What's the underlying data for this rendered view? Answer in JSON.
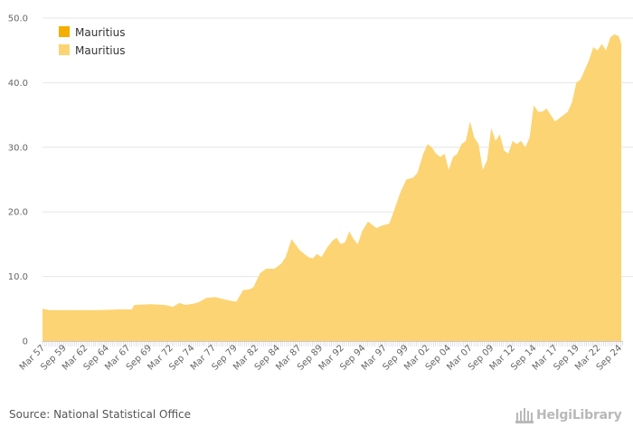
{
  "colors": {
    "series_1": "#f4ae00",
    "series_2": "#fcd473",
    "grid": "#e6e6e6",
    "axis_text": "#666666",
    "logo": "#b9b9b9"
  },
  "chart_data": {
    "type": "area",
    "title": "",
    "xlabel": "",
    "ylabel": "",
    "ylim": [
      0,
      50
    ],
    "y_ticks": [
      "0",
      "10.0",
      "20.0",
      "30.0",
      "40.0",
      "50.0"
    ],
    "y_tick_values": [
      0,
      10,
      20,
      30,
      40,
      50
    ],
    "x_tick_labels": [
      "Mar 57",
      "Sep 59",
      "Mar 62",
      "Sep 64",
      "Mar 67",
      "Sep 69",
      "Mar 72",
      "Sep 74",
      "Mar 77",
      "Sep 79",
      "Mar 82",
      "Sep 84",
      "Mar 87",
      "Sep 89",
      "Mar 92",
      "Sep 94",
      "Mar 97",
      "Sep 99",
      "Mar 02",
      "Sep 04",
      "Mar 07",
      "Sep 09",
      "Mar 12",
      "Sep 14",
      "Mar 17",
      "Sep 19",
      "Mar 22",
      "Sep 24"
    ],
    "x_range_years": [
      1957.2,
      2025.5
    ],
    "legend_position": "top-left",
    "series": [
      {
        "name": "Mauritius",
        "legend_label": "Mauritius",
        "color": "#f4ae00",
        "style": "filled-square",
        "x": [],
        "values": []
      },
      {
        "name": "Mauritius",
        "legend_label": "Mauritius",
        "color": "#fcd473",
        "style": "area",
        "x": [
          1957.2,
          1958.0,
          1960.0,
          1962.0,
          1964.0,
          1966.0,
          1967.7,
          1968.0,
          1970.0,
          1971.5,
          1972.0,
          1972.5,
          1973.3,
          1974.0,
          1975.0,
          1975.5,
          1976.5,
          1977.5,
          1978.5,
          1979.5,
          1980.0,
          1980.8,
          1981.5,
          1982.0,
          1982.8,
          1983.5,
          1984.5,
          1985.3,
          1985.8,
          1986.5,
          1987.5,
          1988.5,
          1989.0,
          1989.5,
          1990.0,
          1990.7,
          1991.3,
          1991.8,
          1992.3,
          1992.8,
          1993.3,
          1993.8,
          1994.3,
          1994.8,
          1995.5,
          1996.0,
          1996.5,
          1997.0,
          1997.5,
          1998.0,
          1998.5,
          1999.3,
          2000.0,
          2000.8,
          2001.3,
          2002.0,
          2002.5,
          2003.0,
          2003.5,
          2004.0,
          2004.5,
          2005.0,
          2005.5,
          2006.0,
          2006.5,
          2007.0,
          2007.5,
          2008.0,
          2008.5,
          2009.0,
          2009.5,
          2010.0,
          2010.5,
          2011.0,
          2011.5,
          2012.0,
          2012.5,
          2013.0,
          2013.5,
          2014.0,
          2014.5,
          2015.0,
          2015.5,
          2016.0,
          2016.5,
          2017.0,
          2017.5,
          2018.0,
          2018.5,
          2019.0,
          2019.5,
          2020.0,
          2020.5,
          2021.0,
          2021.5,
          2022.0,
          2022.5,
          2023.0,
          2023.5,
          2024.0,
          2024.5,
          2025.0,
          2025.3
        ],
        "values": [
          5.0,
          4.8,
          4.8,
          4.8,
          4.8,
          4.9,
          4.9,
          5.6,
          5.7,
          5.6,
          5.5,
          5.3,
          5.9,
          5.6,
          5.8,
          6.0,
          6.7,
          6.8,
          6.5,
          6.2,
          6.1,
          7.9,
          8.0,
          8.3,
          10.5,
          11.2,
          11.2,
          12.0,
          13.0,
          15.8,
          14.0,
          13.0,
          12.8,
          13.5,
          13.0,
          14.5,
          15.5,
          16.0,
          15.0,
          15.3,
          17.0,
          15.8,
          15.0,
          17.0,
          18.5,
          18.0,
          17.5,
          17.8,
          18.0,
          18.2,
          20.0,
          23.0,
          25.0,
          25.3,
          26.0,
          29.0,
          30.5,
          30.0,
          29.0,
          28.5,
          29.0,
          26.5,
          28.5,
          29.0,
          30.5,
          31.0,
          34.0,
          31.5,
          30.5,
          26.5,
          28.0,
          33.0,
          31.0,
          32.0,
          29.5,
          29.0,
          31.0,
          30.5,
          31.0,
          30.0,
          31.5,
          36.5,
          35.5,
          35.5,
          36.0,
          35.0,
          34.0,
          34.5,
          35.0,
          35.5,
          37.0,
          40.0,
          40.5,
          42.0,
          43.5,
          45.5,
          45.0,
          46.0,
          45.0,
          47.0,
          47.5,
          47.2,
          46.0
        ]
      }
    ]
  },
  "source": {
    "text": "Source: National Statistical Office"
  },
  "logo": {
    "text": "HelgiLibrary"
  }
}
